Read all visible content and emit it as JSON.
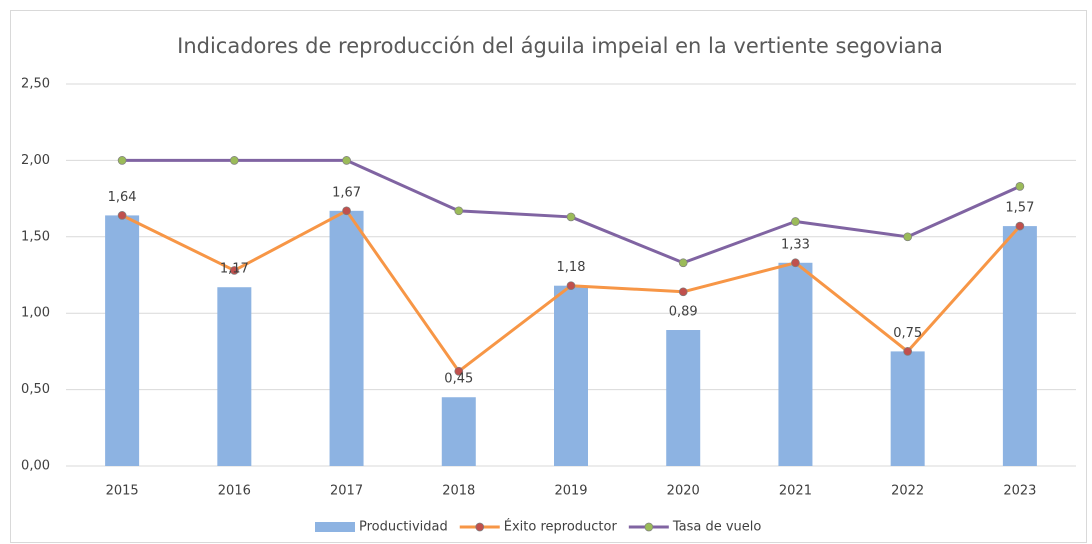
{
  "chart_data": {
    "type": "bar_line",
    "title": "Indicadores de reproducción del águila impeial en la vertiente segoviana",
    "categories": [
      "2015",
      "2016",
      "2017",
      "2018",
      "2019",
      "2020",
      "2021",
      "2022",
      "2023"
    ],
    "series": [
      {
        "name": "Productividad",
        "type": "bar",
        "color": "#8db3e2",
        "values": [
          1.64,
          1.17,
          1.67,
          0.45,
          1.18,
          0.89,
          1.33,
          0.75,
          1.57
        ],
        "value_labels": [
          "1,64",
          "1,17",
          "1,67",
          "0,45",
          "1,18",
          "0,89",
          "1,33",
          "0,75",
          "1,57"
        ]
      },
      {
        "name": "Éxito reproductor",
        "type": "line",
        "color": "#f79646",
        "marker_color": "#c0504d",
        "values": [
          1.64,
          1.28,
          1.67,
          0.62,
          1.18,
          1.14,
          1.33,
          0.75,
          1.57
        ]
      },
      {
        "name": "Tasa de vuelo",
        "type": "line",
        "color": "#8064a2",
        "marker_color": "#9bbb59",
        "values": [
          2.0,
          2.0,
          2.0,
          1.67,
          1.63,
          1.33,
          1.6,
          1.5,
          1.83
        ]
      }
    ],
    "ylim": [
      0,
      2.5
    ],
    "yticks": [
      {
        "value": 0,
        "label": "0,00"
      },
      {
        "value": 0.5,
        "label": "0,50"
      },
      {
        "value": 1,
        "label": "1,00"
      },
      {
        "value": 1.5,
        "label": "1,50"
      },
      {
        "value": 2,
        "label": "2,00"
      },
      {
        "value": 2.5,
        "label": "2,50"
      }
    ],
    "grid": true,
    "legend": "bottom"
  }
}
